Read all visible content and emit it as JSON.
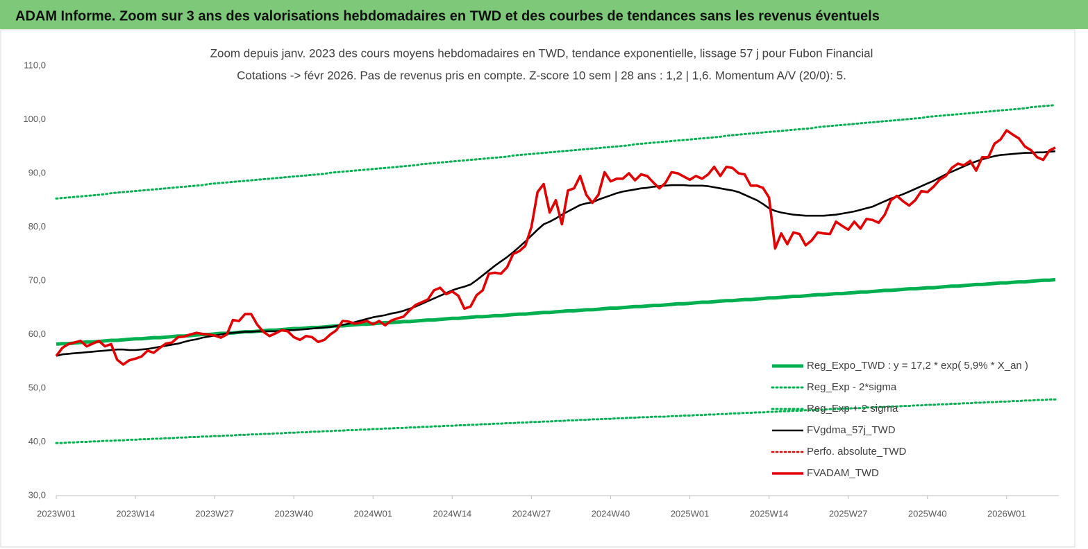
{
  "chart_data": {
    "type": "line",
    "title": "ADAM Informe. Zoom sur 3 ans des valorisations hebdomadaires en TWD et des courbes de tendances sans les revenus éventuels",
    "subtitle": [
      "Zoom depuis janv. 2023 des cours moyens hebdomadaires en TWD, tendance exponentielle, lissage 57 j pour Fubon Financial",
      "Cotations -> févr 2026. Pas de revenus pris en compte. Z-score 10 sem | 28 ans : 1,2 | 1,6. Momentum A/V (20/0): 5."
    ],
    "categories": [
      "2023W01",
      null,
      null,
      null,
      null,
      null,
      null,
      null,
      null,
      null,
      null,
      null,
      null,
      "2023W14",
      null,
      null,
      null,
      null,
      null,
      null,
      null,
      null,
      null,
      null,
      null,
      null,
      "2023W27",
      null,
      null,
      null,
      null,
      null,
      null,
      null,
      null,
      null,
      null,
      null,
      null,
      "2023W40",
      null,
      null,
      null,
      null,
      null,
      null,
      null,
      null,
      null,
      null,
      null,
      null,
      "2024W01",
      null,
      null,
      null,
      null,
      null,
      null,
      null,
      null,
      null,
      null,
      null,
      null,
      "2024W14",
      null,
      null,
      null,
      null,
      null,
      null,
      null,
      null,
      null,
      null,
      null,
      null,
      "2024W27",
      null,
      null,
      null,
      null,
      null,
      null,
      null,
      null,
      null,
      null,
      null,
      null,
      "2024W40",
      null,
      null,
      null,
      null,
      null,
      null,
      null,
      null,
      null,
      null,
      null,
      null,
      "2025W01",
      null,
      null,
      null,
      null,
      null,
      null,
      null,
      null,
      null,
      null,
      null,
      null,
      "2025W14",
      null,
      null,
      null,
      null,
      null,
      null,
      null,
      null,
      null,
      null,
      null,
      null,
      "2025W27",
      null,
      null,
      null,
      null,
      null,
      null,
      null,
      null,
      null,
      null,
      null,
      null,
      "2025W40",
      null,
      null,
      null,
      null,
      null,
      null,
      null,
      null,
      null,
      null,
      null,
      null,
      "2026W01",
      null,
      null,
      null,
      null,
      null,
      null,
      null,
      null
    ],
    "ylim": [
      30,
      110
    ],
    "yticks": [
      {
        "value": 30,
        "label": "30,0"
      },
      {
        "value": 40,
        "label": "40,0"
      },
      {
        "value": 50,
        "label": "50,0"
      },
      {
        "value": 60,
        "label": "60,0"
      },
      {
        "value": 70,
        "label": "70,0"
      },
      {
        "value": 80,
        "label": "80,0"
      },
      {
        "value": 90,
        "label": "90,0"
      },
      {
        "value": 100,
        "label": "100,0"
      },
      {
        "value": 110,
        "label": "110,0"
      }
    ],
    "grid": false,
    "legend": "bottom-right",
    "series": [
      {
        "name": "Reg_Expo_TWD : y = 17,2 * exp( 5,9% *  X_an )",
        "color": "#00b050",
        "style": "solid",
        "values": [
          58.2,
          58.3,
          58.3,
          58.4,
          58.5,
          58.6,
          58.6,
          58.7,
          58.8,
          58.9,
          58.9,
          59.0,
          59.1,
          59.2,
          59.2,
          59.3,
          59.4,
          59.4,
          59.5,
          59.6,
          59.7,
          59.7,
          59.8,
          59.9,
          60.0,
          60.0,
          60.1,
          60.2,
          60.2,
          60.3,
          60.4,
          60.5,
          60.5,
          60.6,
          60.7,
          60.8,
          60.8,
          60.9,
          61.0,
          61.1,
          61.1,
          61.2,
          61.3,
          61.3,
          61.4,
          61.5,
          61.6,
          61.6,
          61.7,
          61.8,
          61.9,
          61.9,
          62.0,
          62.1,
          62.2,
          62.2,
          62.3,
          62.4,
          62.4,
          62.5,
          62.6,
          62.7,
          62.7,
          62.8,
          62.9,
          63.0,
          63.0,
          63.1,
          63.2,
          63.3,
          63.3,
          63.4,
          63.5,
          63.5,
          63.6,
          63.7,
          63.8,
          63.8,
          63.9,
          64.0,
          64.1,
          64.1,
          64.2,
          64.3,
          64.4,
          64.4,
          64.5,
          64.6,
          64.6,
          64.7,
          64.8,
          64.9,
          64.9,
          65.0,
          65.1,
          65.2,
          65.2,
          65.3,
          65.4,
          65.4,
          65.5,
          65.6,
          65.7,
          65.7,
          65.8,
          65.9,
          66.0,
          66.0,
          66.1,
          66.2,
          66.3,
          66.3,
          66.4,
          66.5,
          66.5,
          66.6,
          66.7,
          66.8,
          66.8,
          66.9,
          67.0,
          67.1,
          67.1,
          67.2,
          67.3,
          67.4,
          67.4,
          67.5,
          67.6,
          67.6,
          67.7,
          67.8,
          67.9,
          67.9,
          68.0,
          68.1,
          68.2,
          68.2,
          68.3,
          68.4,
          68.5,
          68.5,
          68.6,
          68.7,
          68.7,
          68.8,
          68.9,
          69.0,
          69.0,
          69.1,
          69.2,
          69.3,
          69.3,
          69.4,
          69.5,
          69.6,
          69.6,
          69.7,
          69.8,
          69.8,
          69.9,
          70.0,
          70.1,
          70.1,
          70.2
        ]
      },
      {
        "name": "Reg_Exp - 2*sigma",
        "color": "#00b050",
        "style": "dotted",
        "values": [
          39.8,
          39.8,
          39.9,
          39.9,
          40.0,
          40.0,
          40.1,
          40.1,
          40.2,
          40.2,
          40.3,
          40.3,
          40.4,
          40.4,
          40.5,
          40.5,
          40.6,
          40.6,
          40.7,
          40.7,
          40.8,
          40.8,
          40.9,
          40.9,
          41.0,
          41.0,
          41.1,
          41.1,
          41.2,
          41.2,
          41.3,
          41.3,
          41.4,
          41.4,
          41.5,
          41.5,
          41.6,
          41.6,
          41.7,
          41.7,
          41.8,
          41.8,
          41.9,
          41.9,
          42.0,
          42.0,
          42.1,
          42.1,
          42.2,
          42.2,
          42.3,
          42.3,
          42.4,
          42.4,
          42.5,
          42.5,
          42.6,
          42.6,
          42.7,
          42.7,
          42.8,
          42.8,
          42.9,
          42.9,
          43.0,
          43.0,
          43.1,
          43.1,
          43.2,
          43.2,
          43.3,
          43.3,
          43.4,
          43.4,
          43.5,
          43.5,
          43.6,
          43.6,
          43.7,
          43.7,
          43.8,
          43.8,
          43.9,
          43.9,
          44.0,
          44.0,
          44.1,
          44.1,
          44.2,
          44.2,
          44.3,
          44.3,
          44.4,
          44.4,
          44.5,
          44.5,
          44.6,
          44.6,
          44.7,
          44.7,
          44.7,
          44.8,
          44.8,
          44.9,
          44.9,
          45.0,
          45.0,
          45.1,
          45.1,
          45.2,
          45.2,
          45.3,
          45.3,
          45.4,
          45.4,
          45.5,
          45.5,
          45.6,
          45.6,
          45.7,
          45.7,
          45.8,
          45.8,
          45.9,
          45.9,
          46.0,
          46.0,
          46.1,
          46.1,
          46.2,
          46.2,
          46.3,
          46.3,
          46.4,
          46.4,
          46.5,
          46.5,
          46.6,
          46.6,
          46.7,
          46.7,
          46.8,
          46.8,
          46.9,
          46.9,
          47.0,
          47.0,
          47.1,
          47.1,
          47.2,
          47.2,
          47.3,
          47.3,
          47.4,
          47.4,
          47.5,
          47.5,
          47.6,
          47.6,
          47.7,
          47.7,
          47.8,
          47.8,
          47.9,
          47.9
        ]
      },
      {
        "name": "Reg_Exp + 2 sigma",
        "color": "#00b050",
        "style": "dotted",
        "values": [
          85.3,
          85.4,
          85.5,
          85.6,
          85.7,
          85.8,
          85.9,
          86.0,
          86.1,
          86.3,
          86.4,
          86.5,
          86.6,
          86.7,
          86.8,
          86.9,
          87.0,
          87.1,
          87.2,
          87.3,
          87.4,
          87.5,
          87.6,
          87.7,
          87.8,
          88.0,
          88.1,
          88.2,
          88.3,
          88.4,
          88.5,
          88.6,
          88.7,
          88.8,
          88.9,
          89.0,
          89.1,
          89.2,
          89.3,
          89.4,
          89.5,
          89.6,
          89.7,
          89.8,
          89.9,
          90.1,
          90.2,
          90.3,
          90.4,
          90.5,
          90.6,
          90.7,
          90.8,
          90.9,
          91.0,
          91.1,
          91.2,
          91.3,
          91.4,
          91.5,
          91.7,
          91.8,
          91.9,
          92.0,
          92.1,
          92.2,
          92.3,
          92.4,
          92.5,
          92.6,
          92.7,
          92.8,
          92.9,
          93.0,
          93.1,
          93.3,
          93.4,
          93.5,
          93.6,
          93.7,
          93.8,
          93.9,
          94.0,
          94.1,
          94.2,
          94.3,
          94.4,
          94.5,
          94.6,
          94.7,
          94.8,
          94.9,
          95.0,
          95.1,
          95.2,
          95.4,
          95.5,
          95.6,
          95.7,
          95.8,
          95.9,
          96.0,
          96.1,
          96.2,
          96.3,
          96.4,
          96.5,
          96.6,
          96.7,
          96.8,
          97.0,
          97.1,
          97.2,
          97.3,
          97.4,
          97.5,
          97.6,
          97.7,
          97.8,
          97.9,
          98.0,
          98.1,
          98.2,
          98.3,
          98.4,
          98.6,
          98.7,
          98.8,
          98.9,
          99.0,
          99.1,
          99.2,
          99.3,
          99.4,
          99.5,
          99.6,
          99.7,
          99.8,
          99.9,
          100.0,
          100.1,
          100.2,
          100.3,
          100.5,
          100.6,
          100.7,
          100.8,
          100.9,
          101.0,
          101.1,
          101.2,
          101.3,
          101.4,
          101.5,
          101.6,
          101.7,
          101.8,
          101.9,
          102.0,
          102.1,
          102.3,
          102.4,
          102.5,
          102.6,
          102.7
        ]
      },
      {
        "name": "FVgdma_57j_TWD",
        "color": "#000000",
        "style": "solid",
        "values": [
          56.0,
          56.3,
          56.4,
          56.5,
          56.6,
          56.7,
          56.8,
          56.9,
          57.0,
          57.1,
          57.2,
          57.2,
          57.1,
          57.1,
          57.2,
          57.3,
          57.5,
          57.7,
          57.9,
          58.1,
          58.3,
          58.6,
          58.9,
          59.1,
          59.4,
          59.6,
          59.8,
          60.0,
          60.2,
          60.3,
          60.4,
          60.5,
          60.5,
          60.6,
          60.6,
          60.6,
          60.6,
          60.7,
          60.8,
          60.8,
          60.9,
          61.0,
          61.1,
          61.2,
          61.3,
          61.4,
          61.6,
          61.8,
          62.0,
          62.3,
          62.6,
          62.9,
          63.2,
          63.4,
          63.6,
          63.9,
          64.1,
          64.4,
          64.8,
          65.2,
          65.7,
          66.2,
          66.7,
          67.2,
          67.7,
          68.2,
          68.6,
          68.9,
          69.3,
          70.1,
          71.0,
          71.9,
          72.8,
          73.6,
          74.4,
          75.3,
          76.3,
          77.3,
          78.4,
          79.5,
          80.5,
          81.0,
          81.6,
          82.3,
          82.9,
          83.5,
          84.1,
          84.4,
          84.6,
          85.1,
          85.5,
          85.9,
          86.3,
          86.6,
          86.8,
          87.0,
          87.2,
          87.3,
          87.5,
          87.6,
          87.7,
          87.8,
          87.8,
          87.8,
          87.7,
          87.7,
          87.7,
          87.6,
          87.4,
          87.2,
          87.0,
          86.8,
          86.5,
          86.0,
          85.5,
          85.0,
          84.3,
          83.5,
          83.0,
          82.7,
          82.5,
          82.3,
          82.2,
          82.1,
          82.1,
          82.1,
          82.1,
          82.2,
          82.3,
          82.5,
          82.7,
          82.9,
          83.2,
          83.5,
          83.8,
          84.3,
          84.8,
          85.3,
          85.7,
          86.1,
          86.6,
          87.1,
          87.6,
          88.1,
          88.6,
          89.2,
          89.8,
          90.3,
          90.8,
          91.3,
          91.8,
          92.2,
          92.6,
          92.9,
          93.2,
          93.4,
          93.5,
          93.6,
          93.7,
          93.8,
          93.8,
          93.9,
          93.9,
          94.0,
          94.1
        ]
      },
      {
        "name": "Perfo. absolute_TWD",
        "color": "#e00000",
        "style": "dotted",
        "values": [
          null,
          null,
          null,
          null,
          null,
          null,
          null,
          null,
          null,
          null,
          null,
          null,
          null,
          null,
          null,
          null,
          null,
          null,
          null,
          null,
          null,
          null,
          null,
          null,
          null,
          null,
          null,
          null,
          null,
          null,
          null,
          null,
          null,
          null,
          null,
          null,
          null,
          null,
          null,
          null,
          null,
          null,
          null,
          null,
          null,
          null,
          null,
          null,
          null,
          null,
          null,
          null,
          null,
          null,
          null,
          null,
          null,
          null,
          null,
          null,
          null,
          null,
          null,
          null,
          null,
          null,
          null,
          null,
          null,
          null,
          null,
          null,
          null,
          null,
          null,
          null,
          null,
          null,
          null,
          null,
          null,
          null,
          null,
          null,
          null,
          null,
          null,
          null,
          null,
          null,
          null,
          null,
          null,
          null,
          null,
          null,
          null,
          null,
          null,
          null,
          null,
          null,
          null,
          null,
          null,
          null,
          null,
          null,
          null,
          null,
          null,
          null,
          null,
          null,
          null,
          null,
          null,
          null,
          null,
          null,
          null,
          null,
          null,
          null,
          null,
          null,
          null,
          null,
          null,
          null,
          null,
          null,
          null,
          null,
          null,
          null,
          null,
          null,
          null,
          null,
          null,
          null,
          null,
          null,
          null,
          null,
          null,
          null,
          null,
          null,
          null,
          null,
          null,
          null,
          null,
          null,
          null,
          null,
          null,
          null,
          null,
          null,
          null,
          null,
          null
        ]
      },
      {
        "name": "FVADAM_TWD",
        "color": "#e00000",
        "style": "solid",
        "values": [
          56.0,
          57.5,
          58.2,
          58.5,
          58.8,
          57.8,
          58.3,
          58.8,
          57.8,
          58.2,
          55.3,
          54.4,
          55.2,
          55.5,
          55.9,
          57.0,
          56.6,
          57.5,
          58.3,
          58.5,
          59.5,
          59.6,
          60.0,
          60.3,
          60.1,
          60.0,
          59.8,
          59.4,
          60.0,
          62.7,
          62.5,
          63.8,
          63.8,
          61.8,
          60.5,
          59.7,
          60.2,
          60.8,
          60.6,
          59.5,
          59.0,
          59.7,
          59.5,
          58.6,
          59.0,
          60.0,
          60.8,
          62.5,
          62.4,
          62.0,
          62.2,
          62.5,
          61.9,
          62.5,
          61.7,
          62.6,
          63.0,
          63.3,
          64.5,
          65.5,
          66.0,
          66.5,
          68.2,
          68.7,
          67.5,
          68.0,
          67.2,
          64.8,
          65.2,
          67.3,
          68.2,
          71.3,
          71.5,
          71.3,
          72.5,
          75.0,
          75.5,
          76.5,
          80.0,
          86.5,
          88.0,
          82.7,
          85.0,
          80.5,
          86.8,
          87.2,
          89.5,
          86.0,
          84.5,
          86.0,
          90.2,
          88.5,
          89.0,
          89.0,
          90.0,
          88.7,
          89.8,
          89.5,
          88.3,
          87.2,
          88.2,
          90.2,
          90.0,
          89.4,
          88.8,
          89.5,
          89.0,
          89.8,
          91.2,
          89.5,
          91.2,
          91.0,
          90.0,
          89.8,
          87.7,
          87.7,
          87.3,
          85.5,
          76.0,
          78.8,
          76.8,
          79.0,
          78.7,
          76.6,
          77.5,
          79.0,
          78.8,
          78.7,
          81.0,
          80.2,
          79.5,
          81.0,
          79.7,
          81.5,
          81.3,
          80.8,
          82.3,
          85.0,
          85.8,
          84.8,
          84.0,
          85.0,
          86.7,
          86.5,
          87.5,
          88.8,
          89.5,
          91.0,
          91.8,
          91.5,
          92.3,
          90.5,
          93.0,
          93.0,
          95.5,
          96.3,
          98.0,
          97.2,
          96.5,
          95.0,
          94.3,
          93.0,
          92.5,
          94.2,
          94.8
        ]
      }
    ]
  }
}
